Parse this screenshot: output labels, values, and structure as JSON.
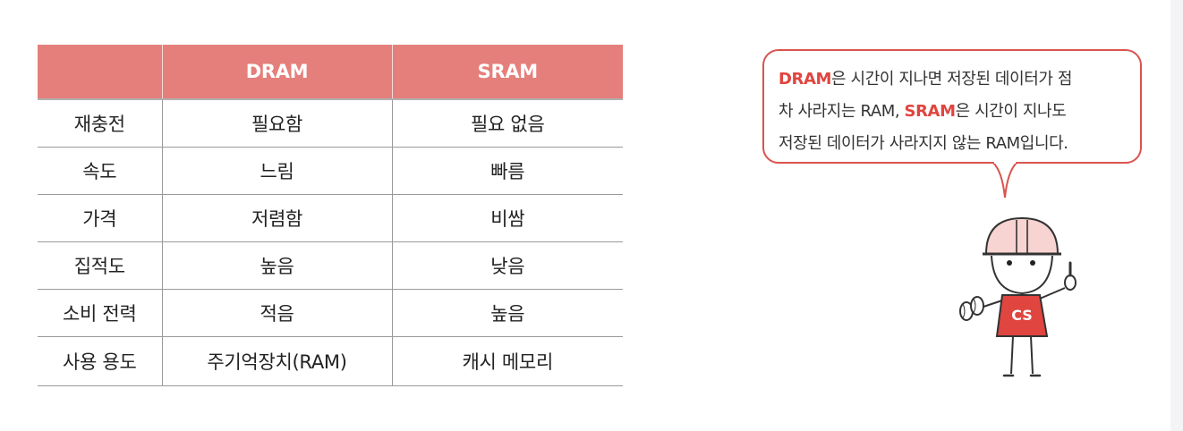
{
  "table": {
    "headers": [
      "",
      "DRAM",
      "SRAM"
    ],
    "rows": [
      [
        "재충전",
        "필요함",
        "필요 없음"
      ],
      [
        "속도",
        "느림",
        "빠름"
      ],
      [
        "가격",
        "저렴함",
        "비쌈"
      ],
      [
        "집적도",
        "높음",
        "낮음"
      ],
      [
        "소비 전력",
        "적음",
        "높음"
      ],
      [
        "사용 용도",
        "주기억장치(RAM)",
        "캐시 메모리"
      ]
    ]
  },
  "bubble": {
    "line1_hl": "DRAM",
    "line1_text": "은 시간이 지나면 저장된 데이터가 점",
    "line2_text": "차 사라지는 RAM, ",
    "line2_hl": "SRAM",
    "line2_text2": "은 시간이 지나도",
    "line3_text": "저장된 데이터가 사라지지 않는 RAM입니다."
  },
  "character": {
    "shirt_label": "CS"
  },
  "colors": {
    "header_bg": "#e57f7c",
    "accent": "#e0453f",
    "shirt": "#e0453f",
    "helmet": "#f7d3d1"
  }
}
